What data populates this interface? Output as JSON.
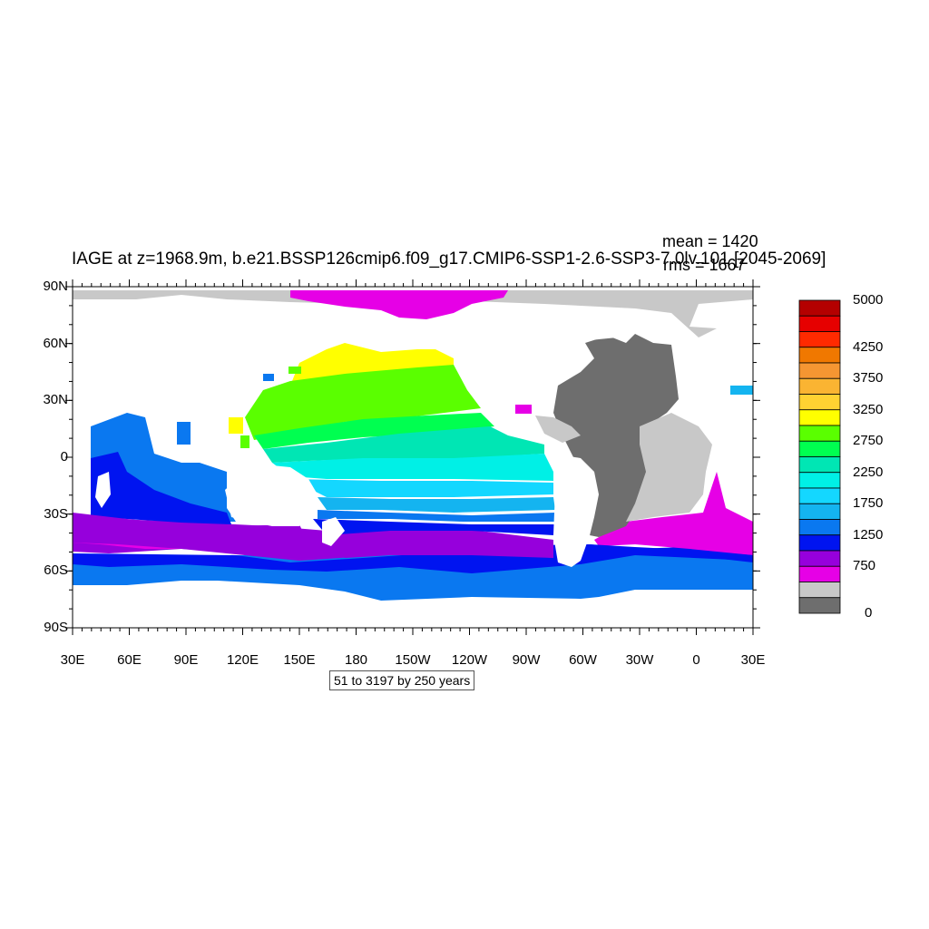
{
  "title": "IAGE at z=1968.9m, b.e21.BSSP126cmip6.f09_g17.CMIP6-SSP1-2.6-SSP3-7.0lv.101 [2045-2069]",
  "stats": {
    "mean": "mean = 1420",
    "rms": "rms = 1667"
  },
  "axes": {
    "lat_ticks": [
      "90N",
      "60N",
      "30N",
      "0",
      "30S",
      "60S",
      "90S"
    ],
    "lon_ticks": [
      "30E",
      "60E",
      "90E",
      "120E",
      "150E",
      "180",
      "150W",
      "120W",
      "90W",
      "60W",
      "30W",
      "0",
      "30E"
    ]
  },
  "contour_info": "51 to 3197 by 250 years",
  "colorbar": {
    "labels": [
      "5000",
      "4250",
      "3750",
      "3250",
      "2750",
      "2250",
      "1750",
      "1250",
      "750",
      "0"
    ],
    "colors": [
      "#b40000",
      "#e60000",
      "#ff2a00",
      "#f07800",
      "#f59632",
      "#fab432",
      "#ffd232",
      "#ffff00",
      "#5aff00",
      "#00ff50",
      "#00e6b4",
      "#00f0e6",
      "#14d7ff",
      "#14b4f0",
      "#0a78f0",
      "#0014f0",
      "#9600dc",
      "#e600e6",
      "#c8c8c8",
      "#6e6e6e"
    ]
  },
  "chart_data": {
    "type": "heatmap",
    "variable": "IAGE",
    "units": "years",
    "depth": "z=1968.9m",
    "period": "2045-2069",
    "mean": 1420,
    "rms": 1667,
    "contour_min": 51,
    "contour_max": 3197,
    "contour_interval": 250,
    "xlim": [
      "30E",
      "30E"
    ],
    "ylim": [
      "90S",
      "90N"
    ],
    "legend": "right"
  }
}
